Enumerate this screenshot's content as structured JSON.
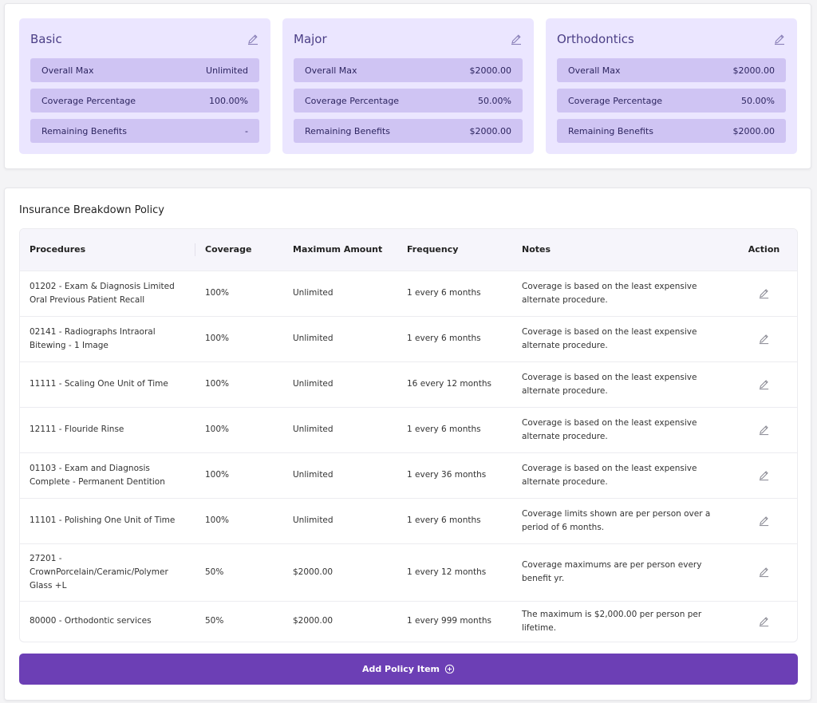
{
  "cards": [
    {
      "title": "Basic",
      "rows": [
        {
          "label": "Overall Max",
          "value": "Unlimited"
        },
        {
          "label": "Coverage Percentage",
          "value": "100.00%"
        },
        {
          "label": "Remaining Benefits",
          "value": "-"
        }
      ]
    },
    {
      "title": "Major",
      "rows": [
        {
          "label": "Overall Max",
          "value": "$2000.00"
        },
        {
          "label": "Coverage Percentage",
          "value": "50.00%"
        },
        {
          "label": "Remaining Benefits",
          "value": "$2000.00"
        }
      ]
    },
    {
      "title": "Orthodontics",
      "rows": [
        {
          "label": "Overall Max",
          "value": "$2000.00"
        },
        {
          "label": "Coverage Percentage",
          "value": "50.00%"
        },
        {
          "label": "Remaining Benefits",
          "value": "$2000.00"
        }
      ]
    }
  ],
  "policy": {
    "title": "Insurance Breakdown Policy",
    "columns": [
      "Procedures",
      "Coverage",
      "Maximum Amount",
      "Frequency",
      "Notes",
      "Action"
    ],
    "rows": [
      {
        "procedure": "01202 - Exam & Diagnosis Limited Oral Previous Patient Recall",
        "coverage": "100%",
        "max": "Unlimited",
        "frequency": "1 every 6 months",
        "notes": "Coverage is based on the least expensive alternate procedure."
      },
      {
        "procedure": "02141 - Radiographs Intraoral Bitewing - 1 Image",
        "coverage": "100%",
        "max": "Unlimited",
        "frequency": "1 every 6 months",
        "notes": "Coverage is based on the least expensive alternate procedure."
      },
      {
        "procedure": "11111 - Scaling One Unit of Time",
        "coverage": "100%",
        "max": "Unlimited",
        "frequency": "16 every 12 months",
        "notes": "Coverage is based on the least expensive alternate procedure."
      },
      {
        "procedure": "12111 - Flouride Rinse",
        "coverage": "100%",
        "max": "Unlimited",
        "frequency": "1 every 6 months",
        "notes": "Coverage is based on the least expensive alternate procedure."
      },
      {
        "procedure": "01103 - Exam and Diagnosis Complete - Permanent Dentition",
        "coverage": "100%",
        "max": "Unlimited",
        "frequency": "1 every 36 months",
        "notes": "Coverage is based on the least expensive alternate procedure."
      },
      {
        "procedure": "11101 - Polishing One Unit of Time",
        "coverage": "100%",
        "max": "Unlimited",
        "frequency": "1 every 6 months",
        "notes": "Coverage limits shown are per person over a period of 6 months."
      },
      {
        "procedure": "27201 - CrownPorcelain/Ceramic/Polymer Glass +L",
        "coverage": "50%",
        "max": "$2000.00",
        "frequency": "1 every 12 months",
        "notes": "Coverage maximums are per person every benefit yr."
      },
      {
        "procedure": "80000 - Orthodontic services",
        "coverage": "50%",
        "max": "$2000.00",
        "frequency": "1 every 999 months",
        "notes": "The maximum is $2,000.00 per person per lifetime."
      }
    ],
    "add_button_label": "Add Policy Item"
  },
  "icons": {
    "edit": "pencil-icon",
    "add": "plus-circle-icon"
  },
  "colors": {
    "accent": "#6c3fb5",
    "card_bg": "#ebe6ff",
    "card_row_bg": "#cfc4f3"
  }
}
